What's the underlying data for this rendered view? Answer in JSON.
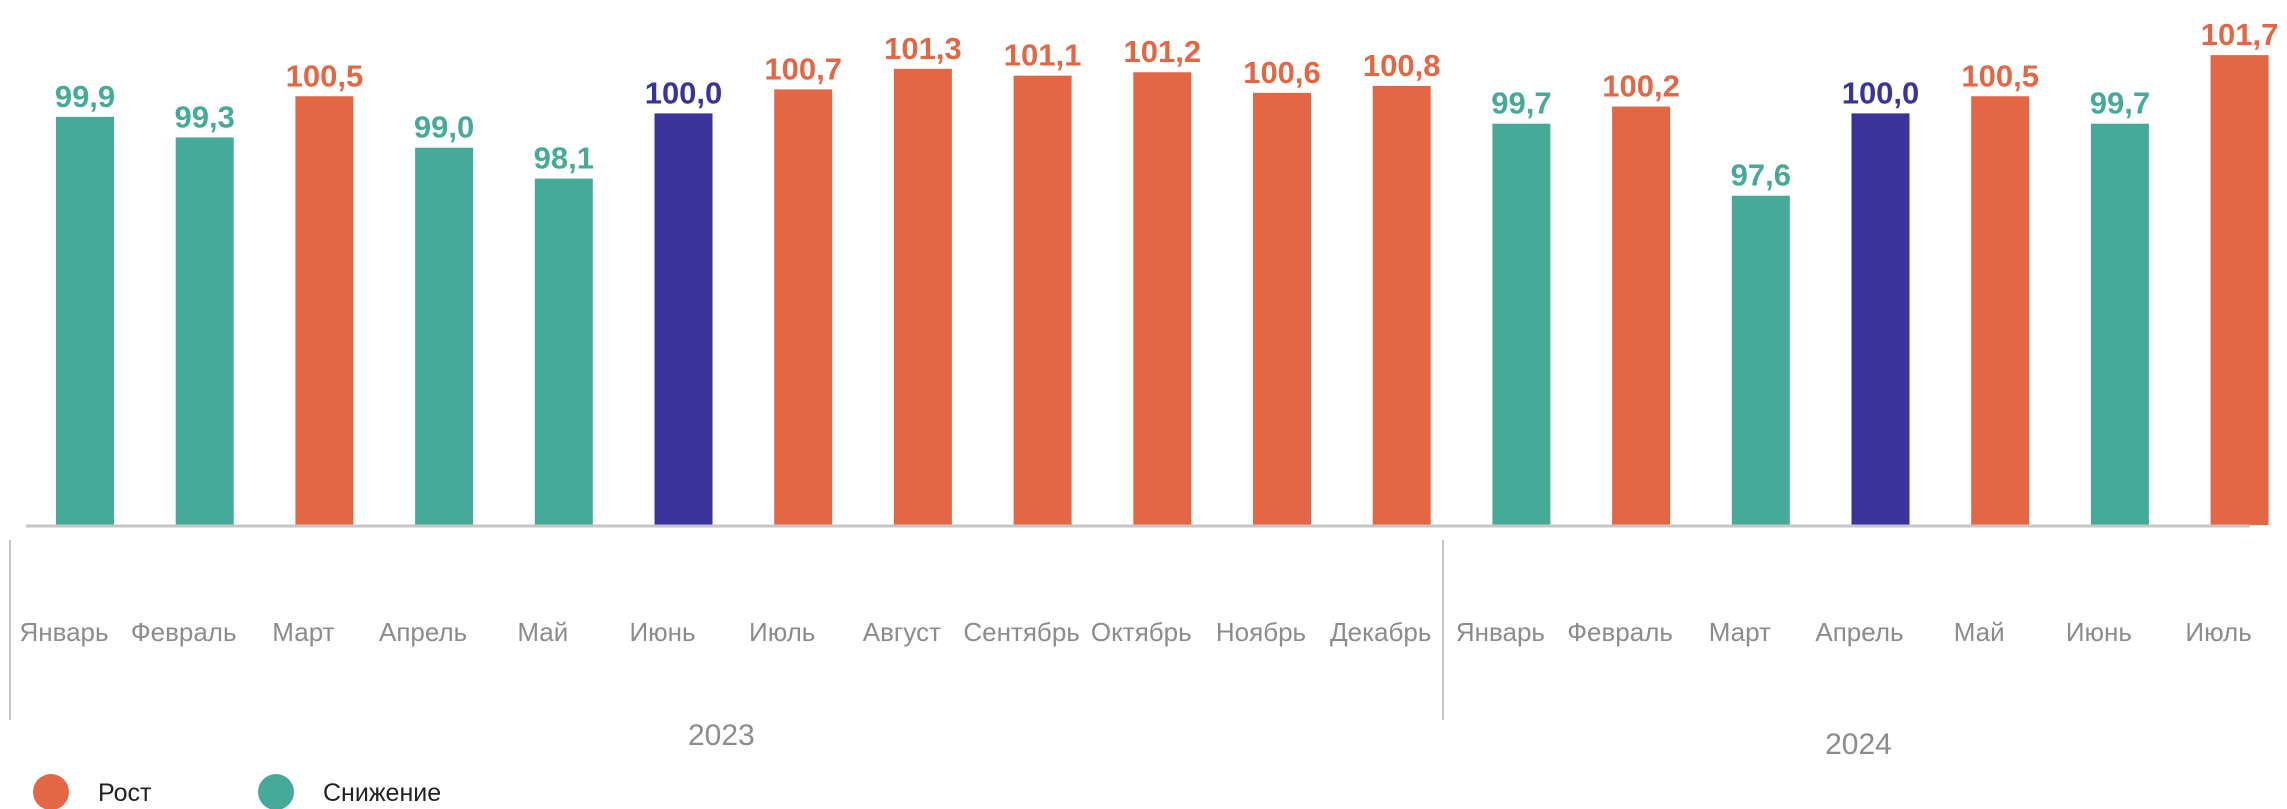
{
  "chart_data": {
    "type": "bar",
    "categories": [
      "Январь",
      "Февраль",
      "Март",
      "Апрель",
      "Май",
      "Июнь",
      "Июль",
      "Август",
      "Сентябрь",
      "Октябрь",
      "Ноябрь",
      "Декабрь",
      "Январь",
      "Февраль",
      "Март",
      "Апрель",
      "Май",
      "Июнь",
      "Июль"
    ],
    "values": [
      99.9,
      99.3,
      100.5,
      99.0,
      98.1,
      100.0,
      100.7,
      101.3,
      101.1,
      101.2,
      100.6,
      100.8,
      99.7,
      100.2,
      97.6,
      100.0,
      100.5,
      99.7,
      101.7
    ],
    "value_labels": [
      "99,9",
      "99,3",
      "100,5",
      "99,0",
      "98,1",
      "100,0",
      "100,7",
      "101,3",
      "101,1",
      "101,2",
      "100,6",
      "100,8",
      "99,7",
      "100,2",
      "97,6",
      "100,0",
      "100,5",
      "99,7",
      "101,7"
    ],
    "status": [
      "down",
      "down",
      "up",
      "down",
      "down",
      "flat",
      "up",
      "up",
      "up",
      "up",
      "up",
      "up",
      "down",
      "up",
      "down",
      "flat",
      "up",
      "down",
      "up"
    ],
    "years": [
      {
        "label": "2023",
        "from": 0,
        "to": 11
      },
      {
        "label": "2024",
        "from": 12,
        "to": 18
      }
    ],
    "colors": {
      "up": "#e36745",
      "down": "#45ab98",
      "flat": "#3a3399"
    },
    "legend": [
      {
        "key": "up",
        "label": "Рост"
      },
      {
        "key": "down",
        "label": "Снижение"
      }
    ],
    "legend_position": "bottom-left",
    "grid": false,
    "ylim": [
      88,
      102
    ]
  }
}
